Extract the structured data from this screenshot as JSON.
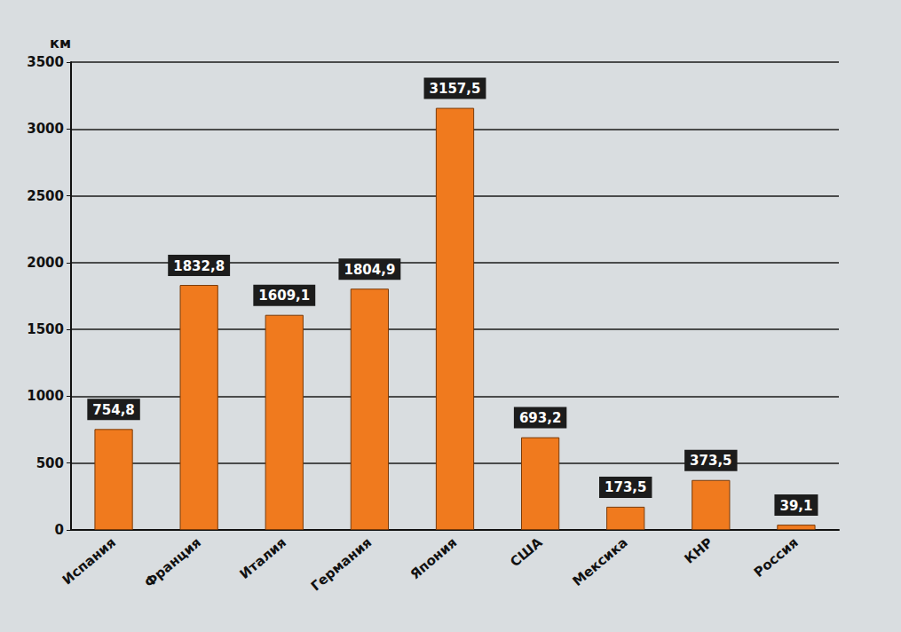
{
  "chart_data": {
    "type": "bar",
    "y_label": "км",
    "categories": [
      "Испания",
      "Франция",
      "Италия",
      "Германия",
      "Япония",
      "США",
      "Мексика",
      "КНР",
      "Россия"
    ],
    "values": [
      754.8,
      1832.8,
      1609.1,
      1804.9,
      3157.5,
      693.2,
      173.5,
      373.5,
      39.1
    ],
    "value_labels": [
      "754,8",
      "1832,8",
      "1609,1",
      "1804,9",
      "3157,5",
      "693,2",
      "173,5",
      "373,5",
      "39,1"
    ],
    "data_labels": true,
    "color": "#f07a1e",
    "ylim": [
      0,
      3500
    ],
    "yticks": [
      0,
      500,
      1000,
      1500,
      2000,
      2500,
      3000,
      3500
    ],
    "grid": true
  }
}
